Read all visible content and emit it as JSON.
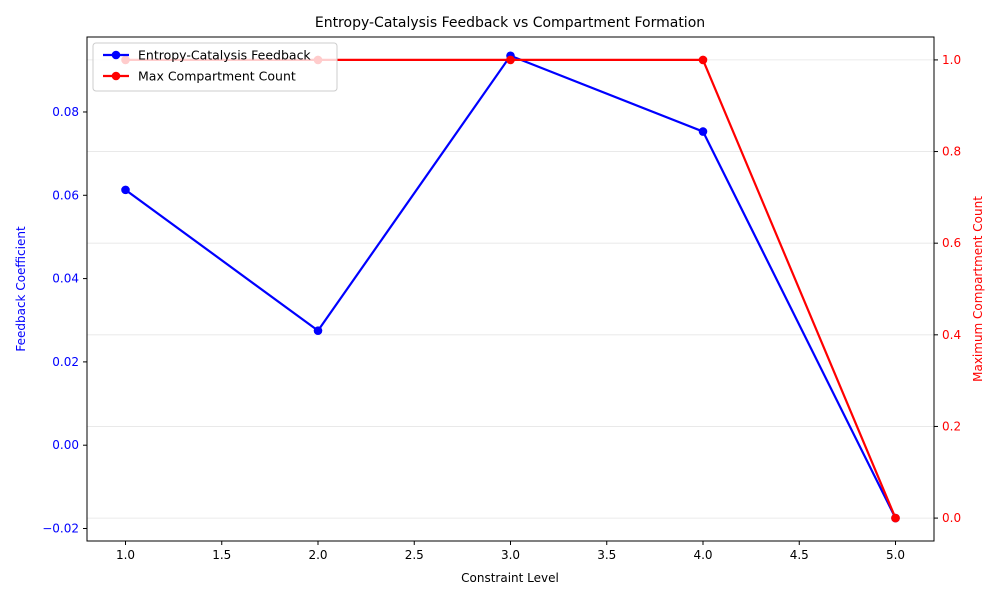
{
  "chart_data": {
    "type": "line",
    "title": "Entropy-Catalysis Feedback vs Compartment Formation",
    "xlabel": "Constraint Level",
    "ylabel_left": "Feedback Coefficient",
    "ylabel_right": "Maximum Compartment Count",
    "x": [
      1,
      2,
      3,
      4,
      5
    ],
    "xlim": [
      0.8,
      5.2
    ],
    "xticks": [
      1.0,
      1.5,
      2.0,
      2.5,
      3.0,
      3.5,
      4.0,
      4.5,
      5.0
    ],
    "xtick_labels": [
      "1.0",
      "1.5",
      "2.0",
      "2.5",
      "3.0",
      "3.5",
      "4.0",
      "4.5",
      "5.0"
    ],
    "ylim_left": [
      -0.023,
      0.098
    ],
    "yticks_left": [
      -0.02,
      0.0,
      0.02,
      0.04,
      0.06,
      0.08
    ],
    "ytick_labels_left": [
      "−0.02",
      "0.00",
      "0.02",
      "0.04",
      "0.06",
      "0.08"
    ],
    "ylim_right": [
      -0.05,
      1.05
    ],
    "yticks_right": [
      0.0,
      0.2,
      0.4,
      0.6,
      0.8,
      1.0
    ],
    "ytick_labels_right": [
      "0.0",
      "0.2",
      "0.4",
      "0.6",
      "0.8",
      "1.0"
    ],
    "grid": "horizontal, right axis",
    "legend_placement": "top-left",
    "series": [
      {
        "name": "Entropy-Catalysis Feedback",
        "axis": "left",
        "color": "#0000ff",
        "values": [
          0.0613,
          0.0275,
          0.0935,
          0.0753,
          -0.0175
        ]
      },
      {
        "name": "Max Compartment Count",
        "axis": "right",
        "color": "#ff0000",
        "values": [
          1,
          1,
          1,
          1,
          0
        ]
      }
    ]
  }
}
